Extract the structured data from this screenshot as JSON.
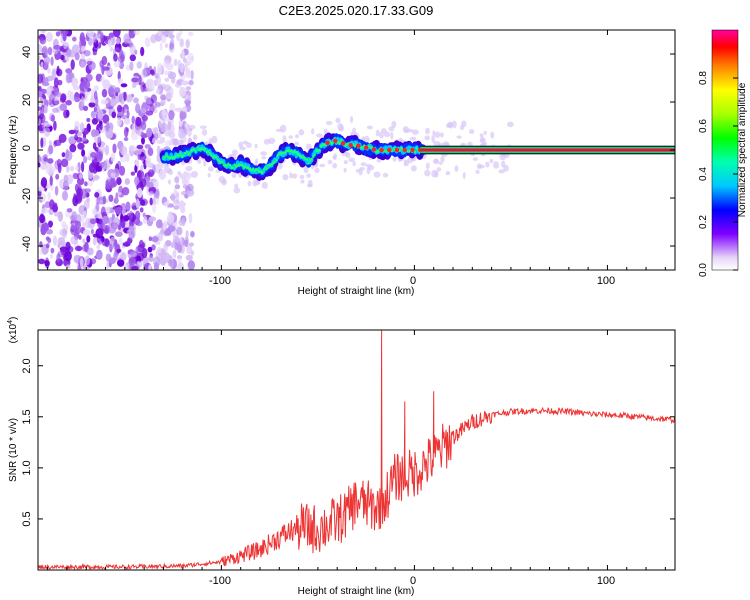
{
  "title": "C2E3.2025.020.17.33.G09",
  "top_panel": {
    "xlabel": "Height of straight line (km)",
    "ylabel": "Frequency (Hz)",
    "colorbar_label": "Normalized spectral amplitude",
    "colorbar_ticks": [
      "0.0",
      "0.2",
      "0.4",
      "0.6",
      "0.8"
    ],
    "x_ticks": [
      "-100",
      "0",
      "100"
    ],
    "y_ticks": [
      "-40",
      "-20",
      "0",
      "20",
      "40"
    ]
  },
  "bottom_panel": {
    "xlabel": "Height of straight line (km)",
    "ylabel": "SNR (10 * v/v)",
    "scale_label": "(x10",
    "scale_exp": "4",
    "scale_close": ")",
    "x_ticks": [
      "-100",
      "0",
      "100"
    ],
    "y_ticks": [
      "0.5",
      "1.0",
      "1.5",
      "2.0"
    ]
  },
  "chart_data": [
    {
      "type": "heatmap",
      "x_range": [
        -195,
        135
      ],
      "ylim": [
        -50,
        50
      ],
      "xlabel": "Height of straight line (km)",
      "ylabel": "Frequency (Hz)",
      "colorbar": {
        "label": "Normalized spectral amplitude",
        "range": [
          0,
          1
        ],
        "ticks": [
          0.0,
          0.2,
          0.4,
          0.6,
          0.8
        ]
      },
      "ridge": {
        "x": [
          -130,
          -120,
          -110,
          -100,
          -95,
          -90,
          -85,
          -80,
          -75,
          -70,
          -65,
          -60,
          -55,
          -50,
          -45,
          -40,
          -35,
          -30,
          -20,
          -10,
          0,
          5,
          135
        ],
        "y": [
          -3,
          -2,
          1,
          -5,
          -7,
          -6,
          -8,
          -9,
          -7,
          -2,
          0,
          -2,
          -5,
          0,
          3,
          4,
          2,
          2,
          0,
          0,
          0,
          0,
          0
        ]
      },
      "scatter_region_x": [
        -195,
        -115
      ],
      "grid": false
    },
    {
      "type": "line",
      "x_range": [
        -195,
        135
      ],
      "ylim": [
        0,
        2.35
      ],
      "y_scale": "x10^4",
      "xlabel": "Height of straight line (km)",
      "ylabel": "SNR (10 * v/v)",
      "series": [
        {
          "color": "#ee3333",
          "x": [
            -195,
            -150,
            -120,
            -100,
            -90,
            -80,
            -70,
            -60,
            -50,
            -40,
            -35,
            -30,
            -20,
            -15,
            -10,
            0,
            10,
            20,
            30,
            40,
            50,
            60,
            70,
            80,
            90,
            100,
            110,
            120,
            135
          ],
          "y": [
            0.03,
            0.03,
            0.04,
            0.08,
            0.14,
            0.2,
            0.32,
            0.42,
            0.4,
            0.48,
            0.55,
            0.68,
            0.6,
            0.7,
            0.9,
            0.95,
            1.1,
            1.3,
            1.45,
            1.52,
            1.55,
            1.56,
            1.56,
            1.55,
            1.53,
            1.52,
            1.51,
            1.49,
            1.47
          ]
        }
      ],
      "peaks": [
        {
          "x": -17,
          "y": 2.35
        },
        {
          "x": -5,
          "y": 1.65
        },
        {
          "x": 10,
          "y": 1.75
        }
      ],
      "grid": false
    }
  ]
}
